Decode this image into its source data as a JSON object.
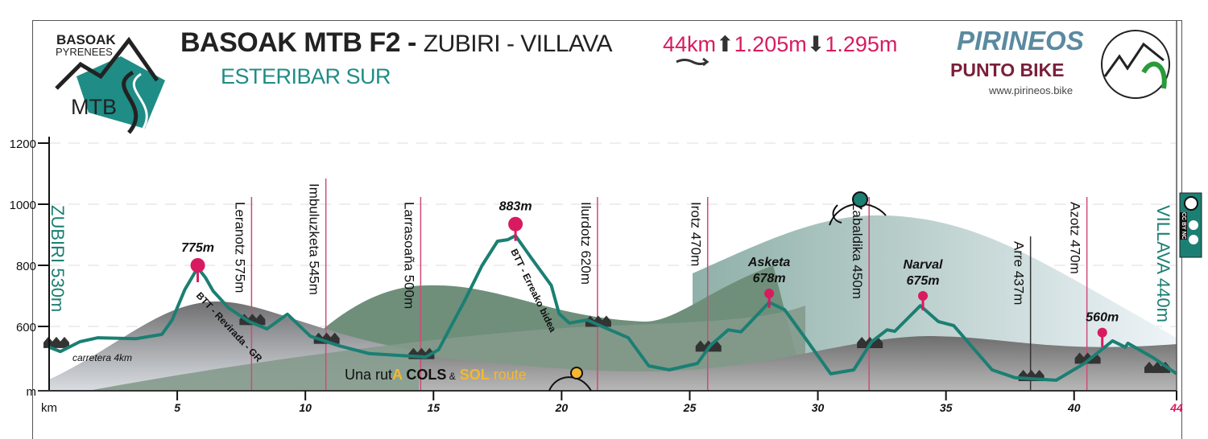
{
  "header": {
    "logo_line1": "BASOAK",
    "logo_line2": "PYRENEES",
    "logo_mtb": "MTB",
    "title_bold": "BASOAK MTB F2 -",
    "title_route": "ZUBIRI - VILLAVA",
    "subtitle": "ESTERIBAR SUR",
    "distance": "44km",
    "ascent": "1.205m",
    "descent": "1.295m",
    "brand": "PIRINEOS",
    "brand_sub": "PUNTO BIKE",
    "website": "www.pirineos.bike",
    "license_badge": "CC BY NC"
  },
  "chart_data": {
    "type": "area",
    "title": "BASOAK MTB F2 - ZUBIRI - VILLAVA",
    "xlabel": "km",
    "ylabel": "m",
    "xlim": [
      0,
      44
    ],
    "ylim": [
      390,
      1300
    ],
    "x_ticks": [
      "5",
      "10",
      "15",
      "20",
      "25",
      "30",
      "35",
      "40",
      "44"
    ],
    "x_tick_values": [
      5,
      10,
      15,
      20,
      25,
      30,
      35,
      40,
      44
    ],
    "y_ticks": [
      "1200",
      "1000",
      "800",
      "600"
    ],
    "y_tick_values": [
      1200,
      1000,
      800,
      600
    ],
    "grid": "horizontal dashed",
    "line_color": "#1b7f73",
    "marker_color": "#d81b60",
    "profile": [
      [
        0,
        532
      ],
      [
        0.44,
        518
      ],
      [
        1.2,
        550
      ],
      [
        1.9,
        563
      ],
      [
        3.4,
        560
      ],
      [
        4.4,
        574
      ],
      [
        4.8,
        621
      ],
      [
        5.3,
        721
      ],
      [
        5.8,
        792
      ],
      [
        6.1,
        760
      ],
      [
        6.4,
        716
      ],
      [
        7.0,
        661
      ],
      [
        7.8,
        616
      ],
      [
        8.5,
        592
      ],
      [
        9.3,
        640
      ],
      [
        10.2,
        568
      ],
      [
        11.3,
        537
      ],
      [
        12.5,
        511
      ],
      [
        14.7,
        500
      ],
      [
        15.2,
        524
      ],
      [
        16.2,
        682
      ],
      [
        16.9,
        800
      ],
      [
        17.5,
        879
      ],
      [
        17.9,
        884
      ],
      [
        18.2,
        897
      ],
      [
        18.8,
        826
      ],
      [
        19.6,
        734
      ],
      [
        19.9,
        642
      ],
      [
        20.3,
        611
      ],
      [
        21.0,
        621
      ],
      [
        21.5,
        603
      ],
      [
        22.6,
        563
      ],
      [
        23.4,
        471
      ],
      [
        24.2,
        458
      ],
      [
        25.3,
        479
      ],
      [
        25.8,
        537
      ],
      [
        26.5,
        589
      ],
      [
        27.0,
        582
      ],
      [
        28.1,
        679
      ],
      [
        28.7,
        655
      ],
      [
        29.5,
        563
      ],
      [
        30.5,
        445
      ],
      [
        31.4,
        458
      ],
      [
        32.1,
        550
      ],
      [
        32.7,
        589
      ],
      [
        33.0,
        584
      ],
      [
        34.0,
        668
      ],
      [
        34.7,
        616
      ],
      [
        35.3,
        603
      ],
      [
        36.8,
        458
      ],
      [
        37.7,
        432
      ],
      [
        39.3,
        424
      ],
      [
        40.4,
        479
      ],
      [
        41.5,
        553
      ],
      [
        42.0,
        532
      ],
      [
        42.1,
        545
      ],
      [
        43.1,
        497
      ],
      [
        44,
        445
      ]
    ],
    "start_label": "ZUBIRI 530m",
    "end_label": "VILLAVA 440m",
    "end_km_label": "44",
    "villages": [
      {
        "km": 7.9,
        "label": "Leranotz 575m"
      },
      {
        "km": 10.8,
        "label": "Imbuluzketa 545m"
      },
      {
        "km": 14.5,
        "label": "Larrasoaña 500m"
      },
      {
        "km": 21.4,
        "label": "Ilurdotz 620m"
      },
      {
        "km": 25.7,
        "label": "Irotz 470m"
      },
      {
        "km": 32.0,
        "label": "Zabaldika 450m"
      },
      {
        "km": 38.3,
        "label": "Arre 437m"
      },
      {
        "km": 40.5,
        "label": "Azotz 470m"
      }
    ],
    "peaks": [
      {
        "km": 5.8,
        "elev": 800,
        "label": "775m"
      },
      {
        "km": 18.2,
        "elev": 935,
        "label": "883m"
      },
      {
        "km": 28.1,
        "elev": 708,
        "name": "Asketa",
        "label": "678m"
      },
      {
        "km": 34.1,
        "elev": 700,
        "name": "Narval",
        "label": "675m"
      },
      {
        "km": 41.1,
        "elev": 580,
        "label": "560m"
      }
    ],
    "annotations": [
      "carretera 4km",
      "BTT - Revirada - GR",
      "BTT - Erreako bidea"
    ],
    "route_tag": {
      "a": "Una rut",
      "b": "A",
      "c": "COLS",
      "d": "&",
      "e": "SOL",
      "f": "route"
    }
  }
}
